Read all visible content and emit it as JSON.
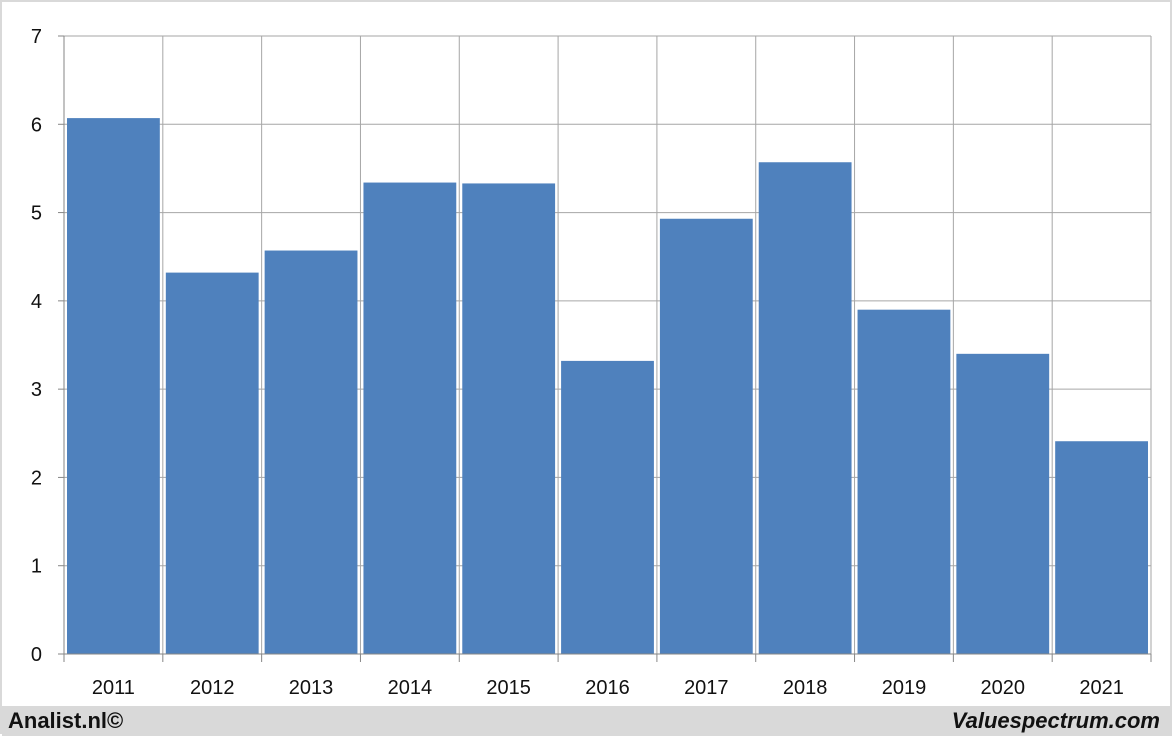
{
  "chart_data": {
    "type": "bar",
    "categories": [
      "2011",
      "2012",
      "2013",
      "2014",
      "2015",
      "2016",
      "2017",
      "2018",
      "2019",
      "2020",
      "2021"
    ],
    "values": [
      6.07,
      4.32,
      4.57,
      5.34,
      5.33,
      3.32,
      4.93,
      5.57,
      3.9,
      3.4,
      2.41
    ],
    "title": "",
    "xlabel": "",
    "ylabel": "",
    "ylim": [
      0,
      7
    ],
    "yticks": [
      "0",
      "1",
      "2",
      "3",
      "4",
      "5",
      "6",
      "7"
    ],
    "grid": true,
    "bar_color": "#4f81bd"
  },
  "footer": {
    "left_text": "Analist.nl©",
    "right_text": "Valuespectrum.com"
  }
}
